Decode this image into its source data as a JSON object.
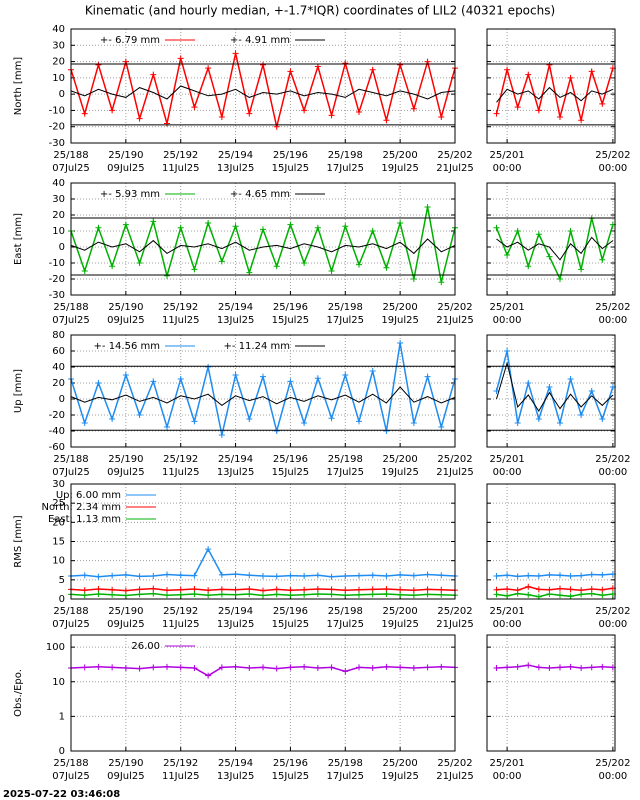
{
  "title": "Kinematic (and hourly median, +-1.7*IQR) coordinates of LIL2 (40321 epochs)",
  "timestamp": "2025-07-22 03:46:08",
  "xaxis": {
    "xlim": [
      188,
      202
    ],
    "xticks": [
      {
        "value": 188,
        "label": "25/188",
        "sublabel": "07Jul25"
      },
      {
        "value": 190,
        "label": "25/190",
        "sublabel": "09Jul25"
      },
      {
        "value": 192,
        "label": "25/192",
        "sublabel": "11Jul25"
      },
      {
        "value": 194,
        "label": "25/194",
        "sublabel": "13Jul25"
      },
      {
        "value": 196,
        "label": "25/196",
        "sublabel": "15Jul25"
      },
      {
        "value": 198,
        "label": "25/198",
        "sublabel": "17Jul25"
      },
      {
        "value": 200,
        "label": "25/200",
        "sublabel": "19Jul25"
      },
      {
        "value": 202,
        "label": "25/202",
        "sublabel": "21Jul25"
      }
    ],
    "x": [
      188,
      188.5,
      189,
      189.5,
      190,
      190.5,
      191,
      191.5,
      192,
      192.5,
      193,
      193.5,
      194,
      194.5,
      195,
      195.5,
      196,
      196.5,
      197,
      197.5,
      198,
      198.5,
      199,
      199.5,
      200,
      200.5,
      201,
      201.5,
      202
    ],
    "zoom_xlim": [
      200.81,
      202.02
    ],
    "zoom_xticks": [
      {
        "value": 201,
        "label": "25/201",
        "sublabel": "00:00"
      },
      {
        "value": 202,
        "label": "25/202",
        "sublabel": "00:00"
      }
    ],
    "zoom_x": [
      200.9,
      201,
      201.1,
      201.2,
      201.3,
      201.4,
      201.5,
      201.6,
      201.7,
      201.8,
      201.9,
      202
    ]
  },
  "chart_data": [
    {
      "type": "line",
      "ylabel": "North [mm]",
      "ylim": [
        -30,
        40
      ],
      "yticks": [
        -30,
        -20,
        -10,
        0,
        10,
        20,
        30,
        40
      ],
      "limits": [
        18.5,
        -18.9
      ],
      "legend_layout": "row",
      "series": [
        {
          "name": "+-  6.79 mm",
          "color": "#ff0000",
          "values": [
            15,
            -12,
            18,
            -10,
            20,
            -15,
            12,
            -18,
            22,
            -8,
            16,
            -14,
            25,
            -12,
            18,
            -20,
            14,
            -10,
            17,
            -13,
            19,
            -11,
            15,
            -16,
            18,
            -9,
            20,
            -14,
            16
          ]
        },
        {
          "name": "+-  4.91 mm",
          "color": "#000000",
          "values": [
            2,
            -1,
            3,
            0,
            -2,
            4,
            1,
            -3,
            5,
            2,
            -1,
            0,
            3,
            -2,
            1,
            0,
            2,
            -1,
            1,
            0,
            -2,
            3,
            1,
            -1,
            2,
            0,
            -3,
            1,
            2
          ]
        }
      ],
      "zoom_series": [
        {
          "color": "#ff0000",
          "values": [
            -12,
            15,
            -8,
            12,
            -10,
            18,
            -14,
            10,
            -16,
            14,
            -6,
            16
          ]
        },
        {
          "color": "#000000",
          "values": [
            -5,
            3,
            0,
            2,
            -3,
            4,
            -2,
            1,
            -4,
            2,
            0,
            3
          ]
        }
      ]
    },
    {
      "type": "line",
      "ylabel": "East [mm]",
      "ylim": [
        -30,
        40
      ],
      "yticks": [
        -30,
        -20,
        -10,
        0,
        10,
        20,
        30,
        40
      ],
      "limits": [
        18.1,
        -17.5
      ],
      "legend_layout": "row",
      "series": [
        {
          "name": "+-  5.93 mm",
          "color": "#00b000",
          "values": [
            10,
            -15,
            12,
            -12,
            14,
            -10,
            16,
            -18,
            12,
            -14,
            15,
            -9,
            13,
            -16,
            11,
            -12,
            14,
            -10,
            12,
            -15,
            13,
            -11,
            10,
            -13,
            15,
            -20,
            25,
            -22,
            12
          ]
        },
        {
          "name": "+-  4.65 mm",
          "color": "#000000",
          "values": [
            1,
            -2,
            3,
            0,
            2,
            -3,
            4,
            -4,
            1,
            0,
            2,
            -1,
            3,
            -2,
            0,
            1,
            -1,
            2,
            0,
            -3,
            1,
            0,
            2,
            -1,
            3,
            -4,
            5,
            -3,
            1
          ]
        }
      ],
      "zoom_series": [
        {
          "color": "#00b000",
          "values": [
            12,
            -5,
            10,
            -12,
            8,
            -6,
            -20,
            10,
            -14,
            18,
            -8,
            14
          ]
        },
        {
          "color": "#000000",
          "values": [
            5,
            0,
            3,
            -2,
            2,
            0,
            -8,
            2,
            -4,
            6,
            -1,
            4
          ]
        }
      ]
    },
    {
      "type": "line",
      "ylabel": "Up [mm]",
      "ylim": [
        -60,
        80
      ],
      "yticks": [
        -60,
        -40,
        -20,
        0,
        20,
        40,
        60,
        80
      ],
      "limits": [
        41,
        -39
      ],
      "legend_layout": "row",
      "series": [
        {
          "name": "+-  14.56 mm",
          "color": "#1e8cf0",
          "values": [
            25,
            -30,
            20,
            -25,
            30,
            -20,
            22,
            -35,
            25,
            -28,
            40,
            -45,
            30,
            -25,
            28,
            -40,
            22,
            -30,
            26,
            -24,
            30,
            -28,
            35,
            -40,
            70,
            -30,
            28,
            -35,
            25
          ]
        },
        {
          "name": "+-  11.24 mm",
          "color": "#000000",
          "values": [
            3,
            -4,
            2,
            -1,
            5,
            -3,
            2,
            -5,
            4,
            0,
            6,
            -8,
            4,
            -2,
            3,
            -6,
            2,
            -3,
            4,
            -1,
            5,
            -4,
            6,
            -5,
            15,
            -4,
            3,
            -5,
            2
          ]
        }
      ],
      "zoom_series": [
        {
          "color": "#1e8cf0",
          "values": [
            10,
            60,
            -30,
            20,
            -25,
            15,
            -30,
            25,
            -20,
            10,
            -25,
            15
          ]
        },
        {
          "color": "#000000",
          "values": [
            0,
            45,
            -10,
            5,
            -15,
            8,
            -12,
            6,
            -10,
            4,
            -8,
            5
          ]
        }
      ]
    },
    {
      "type": "line",
      "ylabel": "RMS [mm]",
      "ylim": [
        0,
        30
      ],
      "yticks": [
        0,
        5,
        10,
        15,
        20,
        25,
        30
      ],
      "legend_layout": "column",
      "series": [
        {
          "name": "Up:   6.00 mm",
          "color": "#1e8cf0",
          "values": [
            6,
            6.2,
            5.8,
            6.1,
            6.3,
            5.9,
            6,
            6.4,
            6.2,
            6.1,
            13,
            6.3,
            6.5,
            6.2,
            6,
            5.9,
            6.1,
            6,
            6.2,
            5.8,
            6,
            6.1,
            6.2,
            6,
            6.3,
            6.1,
            6.4,
            6.2,
            6
          ]
        },
        {
          "name": "North:   2.34 mm",
          "color": "#ff0000",
          "values": [
            2.5,
            2.3,
            2.6,
            2.4,
            2.2,
            2.5,
            2.7,
            2.3,
            2.4,
            2.6,
            2.3,
            2.5,
            2.4,
            2.6,
            2.2,
            2.5,
            2.3,
            2.4,
            2.6,
            2.5,
            2.3,
            2.4,
            2.5,
            2.6,
            2.4,
            2.3,
            2.5,
            2.4,
            2.3
          ]
        },
        {
          "name": "East:   1.13 mm",
          "color": "#00b000",
          "values": [
            1.2,
            1.0,
            1.3,
            1.1,
            0.9,
            1.2,
            1.4,
            1.0,
            1.1,
            1.3,
            1.0,
            1.2,
            1.1,
            1.3,
            0.9,
            1.2,
            1.0,
            1.1,
            1.3,
            1.2,
            1.0,
            1.1,
            1.2,
            1.3,
            1.1,
            1.0,
            1.2,
            1.1,
            1.0
          ]
        }
      ],
      "zoom_series": [
        {
          "color": "#1e8cf0",
          "values": [
            6,
            6.2,
            5.9,
            6.1,
            6,
            6.3,
            6.2,
            6,
            6.1,
            6.4,
            6.3,
            6.5
          ]
        },
        {
          "color": "#ff0000",
          "values": [
            2.4,
            2.6,
            2.3,
            3.2,
            2.5,
            2.4,
            2.7,
            2.5,
            2.3,
            2.6,
            2.4,
            2.8
          ]
        },
        {
          "color": "#00b000",
          "values": [
            1.2,
            0.8,
            1.4,
            1.1,
            0.6,
            1.3,
            1.0,
            0.7,
            1.2,
            1.4,
            1.0,
            1.3
          ]
        }
      ]
    },
    {
      "type": "line",
      "ylabel": "Obs./Epo.",
      "log": true,
      "ylim": [
        0.1,
        224
      ],
      "yticks": [
        {
          "value": 0.1,
          "label": "0"
        },
        1,
        10,
        100
      ],
      "legend_layout": "row",
      "series": [
        {
          "name": "26.00",
          "color": "#b000e0",
          "values": [
            25,
            26,
            27,
            26,
            25,
            24,
            26,
            27,
            26,
            25,
            15,
            26,
            27,
            25,
            26,
            24,
            26,
            27,
            25,
            26,
            20,
            26,
            25,
            27,
            26,
            25,
            26,
            27,
            26
          ]
        }
      ],
      "zoom_series": [
        {
          "color": "#b000e0",
          "values": [
            25,
            26,
            27,
            30,
            26,
            25,
            26,
            27,
            25,
            26,
            27,
            26
          ]
        }
      ]
    }
  ]
}
